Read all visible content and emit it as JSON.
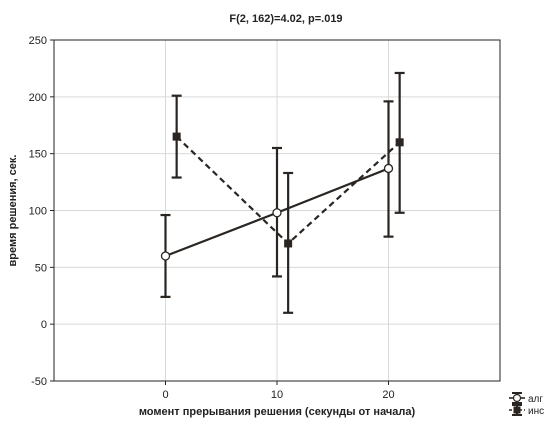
{
  "chart_data": {
    "type": "line",
    "title": "F(2, 162)=4.02, p=.019",
    "xlabel": "момент прерывания решения (секунды от начала)",
    "ylabel": "время решения, сек.",
    "xlim": [
      -10,
      30
    ],
    "ylim": [
      -50,
      250
    ],
    "x_ticks": [
      0,
      10,
      20
    ],
    "y_ticks": [
      -50,
      0,
      50,
      100,
      150,
      200,
      250
    ],
    "grid": true,
    "legend_position": "bottom-right",
    "series": [
      {
        "name": "алг",
        "marker": "circle",
        "line_style": "solid",
        "x": [
          0,
          10,
          20
        ],
        "y": [
          60,
          98,
          137
        ],
        "err_low": [
          24,
          42,
          77
        ],
        "err_high": [
          96,
          155,
          196
        ]
      },
      {
        "name": "инс",
        "marker": "square",
        "line_style": "dashed",
        "x": [
          1,
          11,
          21
        ],
        "y": [
          165,
          71,
          160
        ],
        "err_low": [
          129,
          10,
          98
        ],
        "err_high": [
          201,
          133,
          221
        ]
      }
    ]
  }
}
